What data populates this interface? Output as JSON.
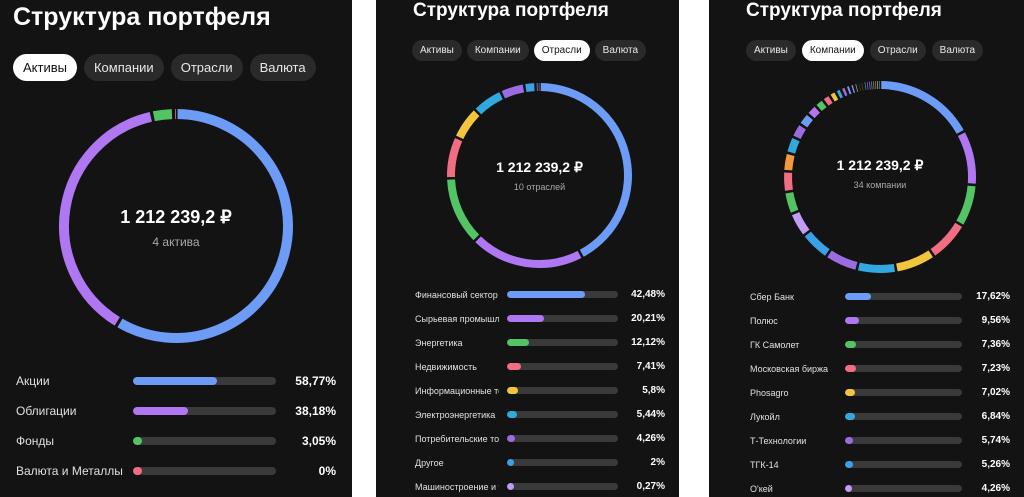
{
  "panels": [
    {
      "title": "Структура портфеля",
      "tabs": [
        "Активы",
        "Компании",
        "Отрасли",
        "Валюта"
      ],
      "active_tab": 0,
      "total": "1 212 239,2 ₽",
      "subtitle": "4 актива",
      "items": [
        {
          "label": "Акции",
          "percent": "58,77%",
          "value": 58.77,
          "color": "#6d9cf7"
        },
        {
          "label": "Облигации",
          "percent": "38,18%",
          "value": 38.18,
          "color": "#b077f2"
        },
        {
          "label": "Фонды",
          "percent": "3,05%",
          "value": 3.05,
          "color": "#52c463"
        },
        {
          "label": "Валюта и Металлы",
          "percent": "0%",
          "value": 0,
          "color": "#f06d82"
        }
      ]
    },
    {
      "title": "Структура портфеля",
      "tabs": [
        "Активы",
        "Компании",
        "Отрасли",
        "Валюта"
      ],
      "active_tab": 2,
      "total": "1 212 239,2 ₽",
      "subtitle": "10 отраслей",
      "items": [
        {
          "label": "Финансовый сектор",
          "percent": "42,48%",
          "value": 42.48,
          "color": "#6d9cf7"
        },
        {
          "label": "Сырьевая промышленность",
          "percent": "20,21%",
          "value": 20.21,
          "color": "#b077f2"
        },
        {
          "label": "Энергетика",
          "percent": "12,12%",
          "value": 12.12,
          "color": "#52c463"
        },
        {
          "label": "Недвижимость",
          "percent": "7,41%",
          "value": 7.41,
          "color": "#f06d82"
        },
        {
          "label": "Информационные технологии",
          "percent": "5,8%",
          "value": 5.8,
          "color": "#f2c53d"
        },
        {
          "label": "Электроэнергетика",
          "percent": "5,44%",
          "value": 5.44,
          "color": "#2fa9e0"
        },
        {
          "label": "Потребительские товары",
          "percent": "4,26%",
          "value": 4.26,
          "color": "#9b6ce0"
        },
        {
          "label": "Другое",
          "percent": "2%",
          "value": 2,
          "color": "#3aa0e8"
        },
        {
          "label": "Машиностроение и транспорт",
          "percent": "0,27%",
          "value": 0.27,
          "color": "#c29bf5"
        }
      ],
      "ring_extra": [
        {
          "value": 0.01,
          "color": "#7f8fa6"
        }
      ]
    },
    {
      "title": "Структура портфеля",
      "tabs": [
        "Активы",
        "Компании",
        "Отрасли",
        "Валюта"
      ],
      "active_tab": 1,
      "total": "1 212 239,2 ₽",
      "subtitle": "34 компании",
      "items": [
        {
          "label": "Сбер Банк",
          "percent": "17,62%",
          "value": 17.62,
          "color": "#6d9cf7"
        },
        {
          "label": "Полюс",
          "percent": "9,56%",
          "value": 9.56,
          "color": "#b077f2"
        },
        {
          "label": "ГК Самолет",
          "percent": "7,36%",
          "value": 7.36,
          "color": "#52c463"
        },
        {
          "label": "Московская биржа",
          "percent": "7,23%",
          "value": 7.23,
          "color": "#f06d82"
        },
        {
          "label": "Phosagro",
          "percent": "7,02%",
          "value": 7.02,
          "color": "#f2c53d"
        },
        {
          "label": "Лукойл",
          "percent": "6,84%",
          "value": 6.84,
          "color": "#2fa9e0"
        },
        {
          "label": "Т-Технологии",
          "percent": "5,74%",
          "value": 5.74,
          "color": "#9b6ce0"
        },
        {
          "label": "ТГК-14",
          "percent": "5,26%",
          "value": 5.26,
          "color": "#3aa0e8"
        },
        {
          "label": "О'кей",
          "percent": "4,26%",
          "value": 4.26,
          "color": "#c29bf5"
        }
      ],
      "ring_extra": [
        {
          "value": 3.9,
          "color": "#52c463"
        },
        {
          "value": 3.6,
          "color": "#f06d82"
        },
        {
          "value": 3.2,
          "color": "#f29a3d"
        },
        {
          "value": 2.9,
          "color": "#2fa9e0"
        },
        {
          "value": 2.5,
          "color": "#9b6ce0"
        },
        {
          "value": 2.2,
          "color": "#6d9cf7"
        },
        {
          "value": 1.9,
          "color": "#b077f2"
        },
        {
          "value": 1.6,
          "color": "#52c463"
        },
        {
          "value": 1.4,
          "color": "#f06d82"
        },
        {
          "value": 1.2,
          "color": "#f2c53d"
        },
        {
          "value": 1.0,
          "color": "#2fa9e0"
        },
        {
          "value": 0.9,
          "color": "#9b6ce0"
        },
        {
          "value": 0.8,
          "color": "#6d9cf7"
        },
        {
          "value": 0.7,
          "color": "#b077f2"
        },
        {
          "value": 0.6,
          "color": "#52c463"
        },
        {
          "value": 0.5,
          "color": "#f06d82"
        },
        {
          "value": 0.5,
          "color": "#f2c53d"
        },
        {
          "value": 0.4,
          "color": "#2fa9e0"
        },
        {
          "value": 0.4,
          "color": "#9b6ce0"
        },
        {
          "value": 0.3,
          "color": "#6d9cf7"
        },
        {
          "value": 0.3,
          "color": "#b077f2"
        },
        {
          "value": 0.2,
          "color": "#52c463"
        },
        {
          "value": 0.2,
          "color": "#f06d82"
        },
        {
          "value": 0.2,
          "color": "#f2c53d"
        },
        {
          "value": 0.1,
          "color": "#2fa9e0"
        }
      ]
    }
  ]
}
